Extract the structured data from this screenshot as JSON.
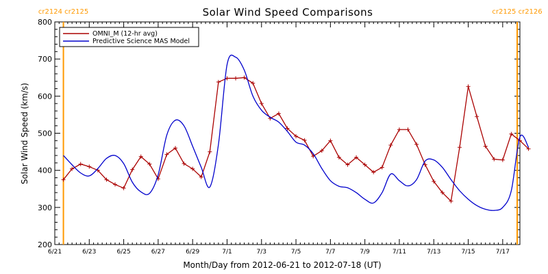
{
  "chart_data": {
    "type": "line",
    "title": "Solar Wind Speed Comparisons",
    "xlabel": "Month/Day from 2012-06-21 to 2012-07-18 (UT)",
    "ylabel": "Solar Wind Speed (km/s)",
    "xlim": [
      "2012-06-21",
      "2012-07-18"
    ],
    "ylim": [
      200,
      800
    ],
    "yticks": [
      200,
      300,
      400,
      500,
      600,
      700,
      800
    ],
    "xticks": [
      {
        "date": "2012-06-21",
        "label": "6/21"
      },
      {
        "date": "2012-06-23",
        "label": "6/23"
      },
      {
        "date": "2012-06-25",
        "label": "6/25"
      },
      {
        "date": "2012-06-27",
        "label": "6/27"
      },
      {
        "date": "2012-06-29",
        "label": "6/29"
      },
      {
        "date": "2012-07-01",
        "label": "7/1"
      },
      {
        "date": "2012-07-03",
        "label": "7/3"
      },
      {
        "date": "2012-07-05",
        "label": "7/5"
      },
      {
        "date": "2012-07-07",
        "label": "7/7"
      },
      {
        "date": "2012-07-09",
        "label": "7/9"
      },
      {
        "date": "2012-07-11",
        "label": "7/11"
      },
      {
        "date": "2012-07-13",
        "label": "7/13"
      },
      {
        "date": "2012-07-15",
        "label": "7/15"
      },
      {
        "date": "2012-07-17",
        "label": "7/17"
      }
    ],
    "carrington_markers": [
      {
        "date": "2012-06-21T12:00",
        "labels": [
          "cr2124",
          "cr2125"
        ],
        "side": "left"
      },
      {
        "date": "2012-07-18T21:00",
        "labels": [
          "cr2125",
          "cr2126"
        ],
        "side": "right"
      }
    ],
    "marker_color": "#ff9900",
    "series": [
      {
        "name": "OMNI_M (12-hr avg)",
        "color": "#aa0000",
        "marker": "plus",
        "points": [
          [
            "2012-06-21T12:00",
            375
          ],
          [
            "2012-06-22T00:00",
            404
          ],
          [
            "2012-06-22T12:00",
            417
          ],
          [
            "2012-06-23T00:00",
            410
          ],
          [
            "2012-06-23T12:00",
            400
          ],
          [
            "2012-06-24T00:00",
            375
          ],
          [
            "2012-06-24T12:00",
            362
          ],
          [
            "2012-06-25T00:00",
            352
          ],
          [
            "2012-06-25T12:00",
            402
          ],
          [
            "2012-06-26T00:00",
            437
          ],
          [
            "2012-06-26T12:00",
            417
          ],
          [
            "2012-06-27T00:00",
            377
          ],
          [
            "2012-06-27T12:00",
            443
          ],
          [
            "2012-06-28T00:00",
            460
          ],
          [
            "2012-06-28T12:00",
            418
          ],
          [
            "2012-06-29T00:00",
            404
          ],
          [
            "2012-06-29T12:00",
            382
          ],
          [
            "2012-06-30T00:00",
            450
          ],
          [
            "2012-06-30T12:00",
            638
          ],
          [
            "2012-07-01T00:00",
            648
          ],
          [
            "2012-07-01T12:00",
            648
          ],
          [
            "2012-07-02T00:00",
            650
          ],
          [
            "2012-07-02T12:00",
            635
          ],
          [
            "2012-07-03T00:00",
            580
          ],
          [
            "2012-07-03T12:00",
            540
          ],
          [
            "2012-07-04T00:00",
            553
          ],
          [
            "2012-07-04T12:00",
            513
          ],
          [
            "2012-07-05T00:00",
            492
          ],
          [
            "2012-07-05T12:00",
            481
          ],
          [
            "2012-07-06T00:00",
            438
          ],
          [
            "2012-07-06T12:00",
            453
          ],
          [
            "2012-07-07T00:00",
            480
          ],
          [
            "2012-07-07T12:00",
            435
          ],
          [
            "2012-07-08T00:00",
            415
          ],
          [
            "2012-07-08T12:00",
            435
          ],
          [
            "2012-07-09T00:00",
            415
          ],
          [
            "2012-07-09T12:00",
            395
          ],
          [
            "2012-07-10T00:00",
            408
          ],
          [
            "2012-07-10T12:00",
            468
          ],
          [
            "2012-07-11T00:00",
            510
          ],
          [
            "2012-07-11T12:00",
            510
          ],
          [
            "2012-07-12T00:00",
            470
          ],
          [
            "2012-07-12T12:00",
            415
          ],
          [
            "2012-07-13T00:00",
            370
          ],
          [
            "2012-07-13T12:00",
            340
          ],
          [
            "2012-07-14T00:00",
            317
          ],
          [
            "2012-07-14T12:00",
            462
          ],
          [
            "2012-07-15T00:00",
            626
          ],
          [
            "2012-07-15T12:00",
            545
          ],
          [
            "2012-07-16T00:00",
            465
          ],
          [
            "2012-07-16T12:00",
            430
          ],
          [
            "2012-07-17T00:00",
            428
          ],
          [
            "2012-07-17T12:00",
            498
          ],
          [
            "2012-07-18T00:00",
            480
          ],
          [
            "2012-07-18T12:00",
            458
          ]
        ]
      },
      {
        "name": "Predictive Science MAS Model",
        "color": "#0000cc",
        "marker": "none",
        "points": [
          [
            "2012-06-21T12:00",
            440
          ],
          [
            "2012-06-22T00:00",
            415
          ],
          [
            "2012-06-22T12:00",
            393
          ],
          [
            "2012-06-23T00:00",
            385
          ],
          [
            "2012-06-23T12:00",
            405
          ],
          [
            "2012-06-24T00:00",
            432
          ],
          [
            "2012-06-24T12:00",
            440
          ],
          [
            "2012-06-25T00:00",
            418
          ],
          [
            "2012-06-25T12:00",
            368
          ],
          [
            "2012-06-26T00:00",
            342
          ],
          [
            "2012-06-26T12:00",
            338
          ],
          [
            "2012-06-27T00:00",
            388
          ],
          [
            "2012-06-27T12:00",
            495
          ],
          [
            "2012-06-28T00:00",
            535
          ],
          [
            "2012-06-28T12:00",
            520
          ],
          [
            "2012-06-29T00:00",
            465
          ],
          [
            "2012-06-29T12:00",
            408
          ],
          [
            "2012-06-30T00:00",
            355
          ],
          [
            "2012-06-30T12:00",
            470
          ],
          [
            "2012-07-01T00:00",
            685
          ],
          [
            "2012-07-01T12:00",
            705
          ],
          [
            "2012-07-02T00:00",
            670
          ],
          [
            "2012-07-02T12:00",
            600
          ],
          [
            "2012-07-03T00:00",
            562
          ],
          [
            "2012-07-03T12:00",
            543
          ],
          [
            "2012-07-04T00:00",
            530
          ],
          [
            "2012-07-04T12:00",
            505
          ],
          [
            "2012-07-05T00:00",
            476
          ],
          [
            "2012-07-05T12:00",
            468
          ],
          [
            "2012-07-06T00:00",
            445
          ],
          [
            "2012-07-06T12:00",
            405
          ],
          [
            "2012-07-07T00:00",
            372
          ],
          [
            "2012-07-07T12:00",
            357
          ],
          [
            "2012-07-08T00:00",
            353
          ],
          [
            "2012-07-08T12:00",
            340
          ],
          [
            "2012-07-09T00:00",
            322
          ],
          [
            "2012-07-09T12:00",
            312
          ],
          [
            "2012-07-10T00:00",
            340
          ],
          [
            "2012-07-10T12:00",
            390
          ],
          [
            "2012-07-11T00:00",
            372
          ],
          [
            "2012-07-11T12:00",
            358
          ],
          [
            "2012-07-12T00:00",
            375
          ],
          [
            "2012-07-12T12:00",
            425
          ],
          [
            "2012-07-13T00:00",
            428
          ],
          [
            "2012-07-13T12:00",
            408
          ],
          [
            "2012-07-14T00:00",
            375
          ],
          [
            "2012-07-14T12:00",
            345
          ],
          [
            "2012-07-15T00:00",
            322
          ],
          [
            "2012-07-15T12:00",
            305
          ],
          [
            "2012-07-16T00:00",
            295
          ],
          [
            "2012-07-16T12:00",
            292
          ],
          [
            "2012-07-17T00:00",
            300
          ],
          [
            "2012-07-17T12:00",
            345
          ],
          [
            "2012-07-18T00:00",
            490
          ],
          [
            "2012-07-18T12:00",
            462
          ]
        ]
      }
    ],
    "legend_position": "top-left",
    "grid": false
  }
}
